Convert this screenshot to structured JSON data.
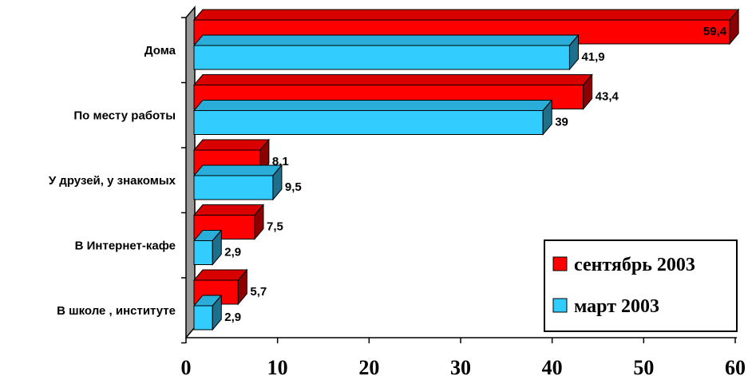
{
  "chart_data": {
    "type": "bar",
    "orientation": "horizontal",
    "style": "3d",
    "categories": [
      "Дома",
      "По месту работы",
      "У друзей, у знакомых",
      "В Интернет-кафе",
      "В школе , институте"
    ],
    "series": [
      {
        "name": "сентябрь 2003",
        "color": "#ff0000",
        "values": [
          59.4,
          43.4,
          8.1,
          7.5,
          5.7
        ],
        "labels": [
          "59,4",
          "43,4",
          "8,1",
          "7,5",
          "5,7"
        ]
      },
      {
        "name": "март 2003",
        "color": "#33ccff",
        "values": [
          41.9,
          39,
          9.5,
          2.9,
          2.9
        ],
        "labels": [
          "41,9",
          "39",
          "9,5",
          "2,9",
          "2,9"
        ]
      }
    ],
    "xlim": [
      0,
      60
    ],
    "xticks": [
      0,
      10,
      20,
      30,
      40,
      50,
      60
    ],
    "xtick_labels": [
      "0",
      "10",
      "20",
      "30",
      "40",
      "50",
      "60"
    ],
    "grid": false,
    "legend_position": "bottom-right",
    "wall_color": "#999999"
  }
}
